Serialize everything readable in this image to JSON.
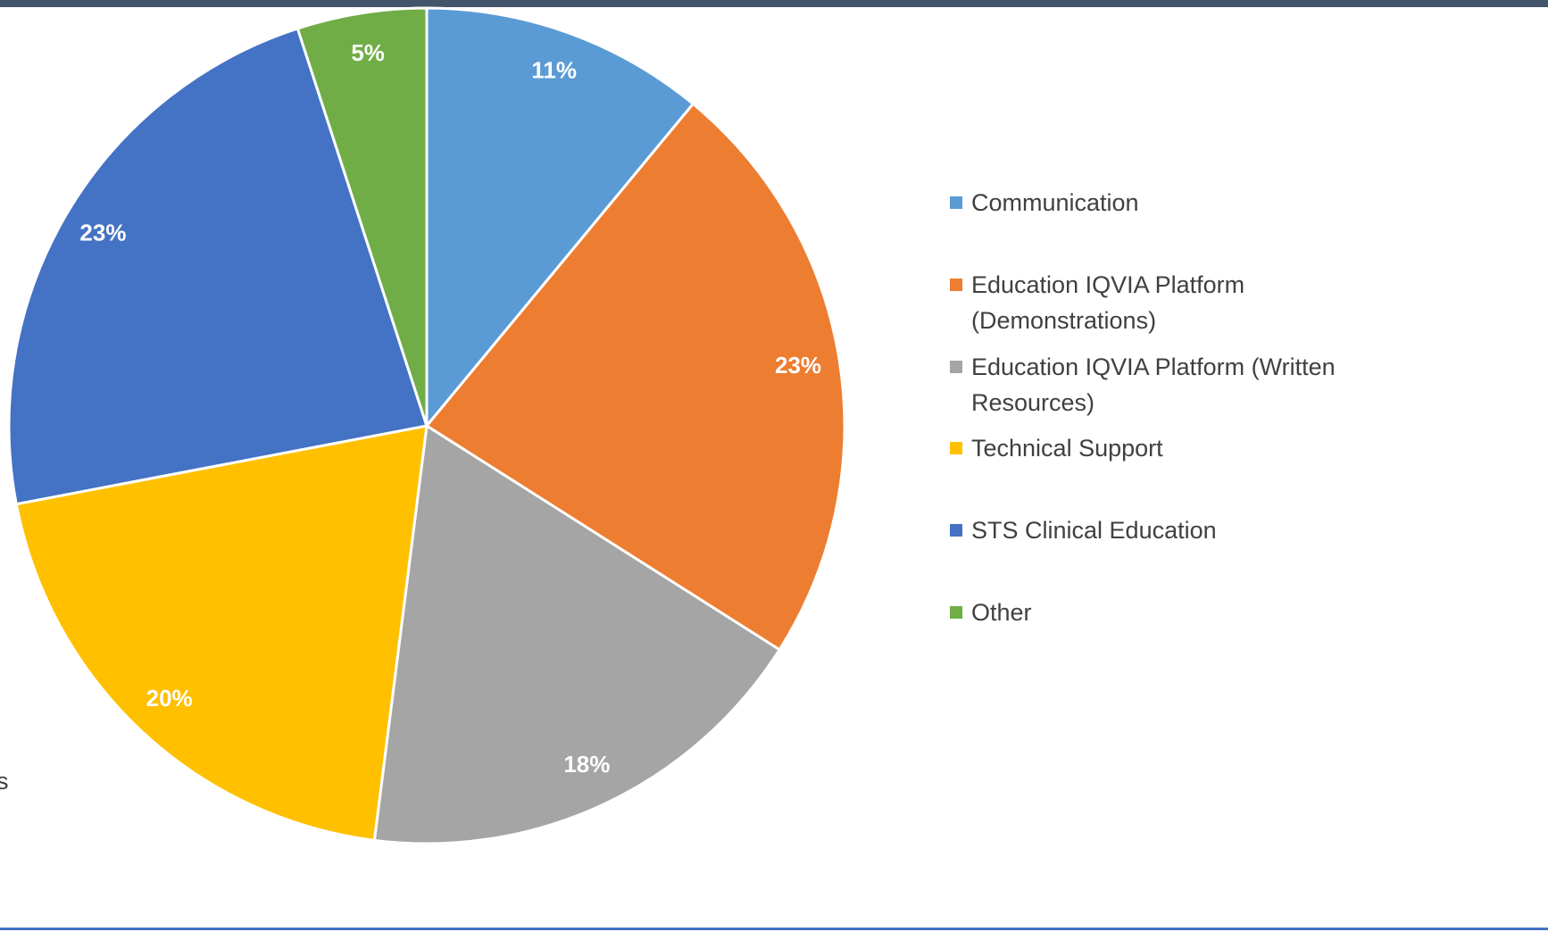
{
  "chart_data": {
    "type": "pie",
    "categories": [
      "Communication",
      "Education IQVIA Platform (Demonstrations)",
      "Education IQVIA Platform (Written Resources)",
      "Technical Support",
      "STS Clinical Education",
      "Other"
    ],
    "values": [
      11,
      23,
      18,
      20,
      23,
      5
    ],
    "value_labels": [
      "11%",
      "23%",
      "18%",
      "20%",
      "23%",
      "5%"
    ],
    "colors": [
      "#5b9bd5",
      "#ed7d31",
      "#a5a5a5",
      "#ffc000",
      "#4472c4",
      "#70ad47"
    ],
    "legend": "right"
  },
  "fragment_text": "s"
}
